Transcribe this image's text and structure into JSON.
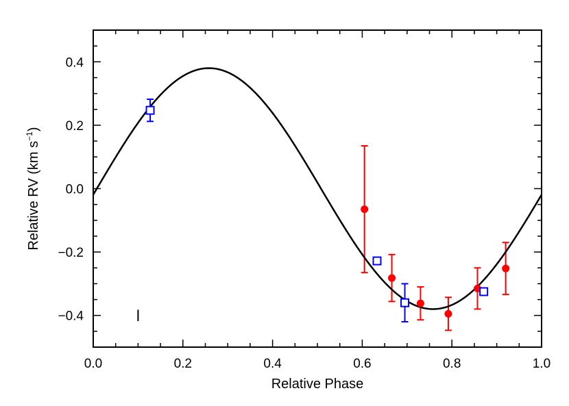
{
  "chart_data": {
    "type": "scatter",
    "title": "",
    "xlabel": "Relative Phase",
    "ylabel_main": "Relative RV (km s",
    "ylabel_sup": "−1",
    "ylabel_close": ")",
    "xlim": [
      0.0,
      1.0
    ],
    "ylim": [
      -0.5,
      0.5
    ],
    "xticks": [
      0.0,
      0.2,
      0.4,
      0.6,
      0.8,
      1.0
    ],
    "xtick_labels": [
      "0.0",
      "0.2",
      "0.4",
      "0.6",
      "0.8",
      "1.0"
    ],
    "yticks": [
      -0.4,
      -0.2,
      0.0,
      0.2,
      0.4
    ],
    "ytick_labels": [
      "−0.4",
      "−0.2",
      "0.0",
      "0.2",
      "0.4"
    ],
    "grid": false,
    "model_curve": {
      "type": "line",
      "color": "#000000",
      "amplitude": 0.38,
      "peak_phase": 0.258
    },
    "series": [
      {
        "marker": "filled-circle",
        "color": "#ff0000",
        "points": [
          {
            "x": 0.605,
            "y": -0.065,
            "err": 0.2
          },
          {
            "x": 0.666,
            "y": -0.282,
            "err": 0.074
          },
          {
            "x": 0.73,
            "y": -0.362,
            "err": 0.052
          },
          {
            "x": 0.792,
            "y": -0.395,
            "err": 0.052
          },
          {
            "x": 0.857,
            "y": -0.315,
            "err": 0.065
          },
          {
            "x": 0.92,
            "y": -0.252,
            "err": 0.082
          }
        ]
      },
      {
        "marker": "open-square",
        "color": "#0000ff",
        "points": [
          {
            "x": 0.127,
            "y": 0.247,
            "err": 0.035
          },
          {
            "x": 0.633,
            "y": -0.228,
            "err": 0.0
          },
          {
            "x": 0.695,
            "y": -0.36,
            "err": 0.06
          },
          {
            "x": 0.871,
            "y": -0.325,
            "err": 0.008
          }
        ]
      }
    ],
    "annotation_errorbar": {
      "x": 0.1,
      "y": -0.4,
      "err": 0.018,
      "color": "#000000"
    }
  }
}
